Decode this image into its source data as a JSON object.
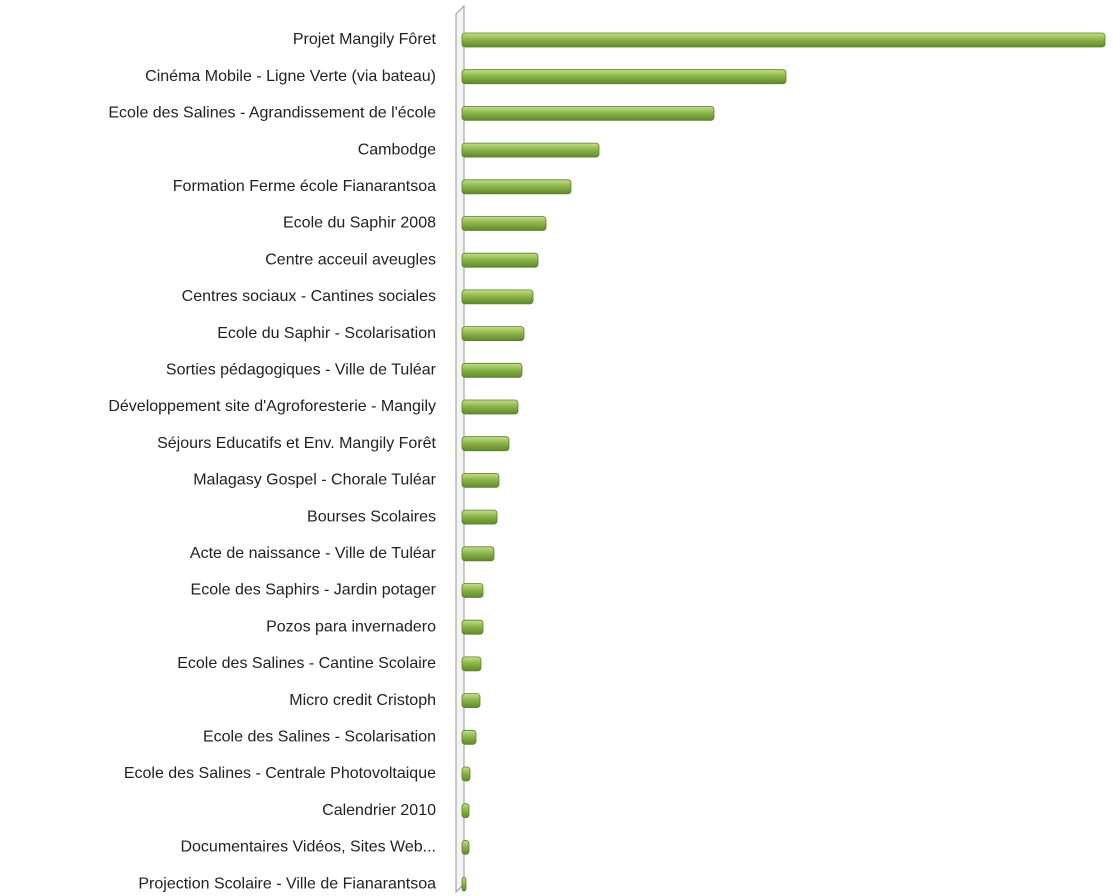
{
  "chart_data": {
    "type": "bar",
    "orientation": "horizontal",
    "categories": [
      "Projet Mangily Fôret",
      "Cinéma Mobile - Ligne Verte (via bateau)",
      "Ecole des Salines - Agrandissement de l'école",
      "Cambodge",
      "Formation Ferme école Fianarantsoa",
      "Ecole du Saphir 2008",
      "Centre acceuil aveugles",
      "Centres sociaux - Cantines sociales",
      "Ecole du Saphir - Scolarisation",
      "Sorties pédagogiques - Ville de Tuléar",
      "Développement site d'Agroforesterie - Mangily",
      "Séjours Educatifs et Env. Mangily Forêt",
      "Malagasy Gospel - Chorale Tuléar",
      "Bourses Scolaires",
      "Acte de naissance  - Ville de Tuléar",
      "Ecole des Saphirs - Jardin potager",
      "Pozos para invernadero",
      "Ecole des Salines - Cantine Scolaire",
      "Micro credit Cristoph",
      "Ecole des Salines - Scolarisation",
      "Ecole des Salines - Centrale Photovoltaique",
      "Calendrier 2010",
      "Documentaires Vidéos, Sites Web...",
      "Projection Scolaire - Ville de Fianarantsoa"
    ],
    "values": [
      643,
      324,
      252,
      137,
      109,
      84,
      76,
      71,
      62,
      60,
      56,
      47,
      37,
      35,
      32,
      21,
      21,
      19,
      18,
      14,
      8,
      7,
      7,
      4
    ],
    "color": "#8db54b",
    "xlim": [
      0,
      650
    ]
  }
}
